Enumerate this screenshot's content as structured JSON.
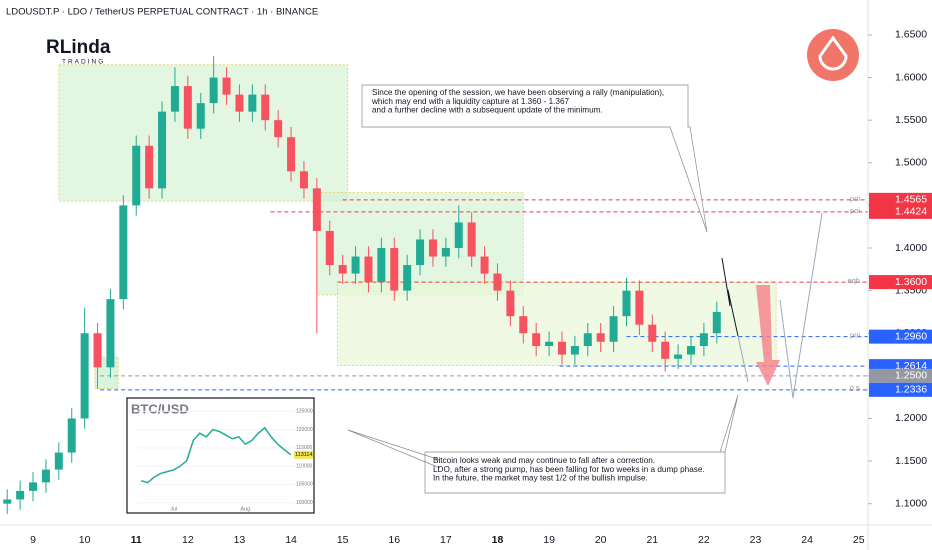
{
  "chart_data": [
    {
      "type": "candlestick",
      "title": "LDOUSDT.P · LDO / TetherUS PERPETUAL CONTRACT · 1h · BINANCE",
      "logo": [
        "RLinda",
        "TRADING"
      ],
      "up_color": "#22ab94",
      "down_color": "#f7525f",
      "xlim": [
        8.36,
        25.18
      ],
      "ylim": [
        1.075,
        1.691
      ],
      "xticks": [
        9,
        10,
        11,
        12,
        13,
        14,
        15,
        16,
        17,
        18,
        19,
        20,
        21,
        22,
        23,
        24,
        25
      ],
      "bold_xticks": [
        11,
        18
      ],
      "yticks": [
        {
          "value": 1.1,
          "label": "1.1000"
        },
        {
          "value": 1.15,
          "label": "1.1500"
        },
        {
          "value": 1.2,
          "label": "1.2000"
        },
        {
          "value": 1.25,
          "label": "1.2500"
        },
        {
          "value": 1.3,
          "label": "1.3000"
        },
        {
          "value": 1.35,
          "label": "1.3500"
        },
        {
          "value": 1.4,
          "label": "1.4000"
        },
        {
          "value": 1.45,
          "label": "1.4500"
        },
        {
          "value": 1.5,
          "label": "1.5000"
        },
        {
          "value": 1.55,
          "label": "1.5500"
        },
        {
          "value": 1.6,
          "label": "1.6000"
        },
        {
          "value": 1.65,
          "label": "1.6500"
        }
      ],
      "candles": {
        "x": [
          8.5,
          8.75,
          9,
          9.25,
          9.5,
          9.75,
          10,
          10.25,
          10.5,
          10.75,
          11,
          11.25,
          11.5,
          11.75,
          12,
          12.25,
          12.5,
          12.75,
          13,
          13.25,
          13.5,
          13.75,
          14,
          14.25,
          14.5,
          14.75,
          15,
          15.25,
          15.5,
          15.75,
          16,
          16.25,
          16.5,
          16.75,
          17,
          17.25,
          17.5,
          17.75,
          18,
          18.25,
          18.5,
          18.75,
          19,
          19.25,
          19.5,
          19.75,
          20,
          20.25,
          20.5,
          20.75,
          21,
          21.25,
          21.5,
          21.75,
          22,
          22.25
        ],
        "open": [
          1.1,
          1.105,
          1.115,
          1.125,
          1.14,
          1.16,
          1.2,
          1.3,
          1.26,
          1.34,
          1.45,
          1.52,
          1.47,
          1.56,
          1.59,
          1.54,
          1.57,
          1.6,
          1.58,
          1.56,
          1.58,
          1.55,
          1.53,
          1.49,
          1.47,
          1.42,
          1.38,
          1.37,
          1.39,
          1.36,
          1.4,
          1.35,
          1.38,
          1.41,
          1.39,
          1.4,
          1.43,
          1.39,
          1.37,
          1.35,
          1.32,
          1.3,
          1.285,
          1.29,
          1.275,
          1.285,
          1.3,
          1.29,
          1.32,
          1.35,
          1.31,
          1.29,
          1.27,
          1.275,
          1.285,
          1.3
        ],
        "high": [
          1.117,
          1.127,
          1.137,
          1.152,
          1.172,
          1.212,
          1.33,
          1.312,
          1.352,
          1.462,
          1.532,
          1.532,
          1.572,
          1.612,
          1.602,
          1.582,
          1.625,
          1.612,
          1.592,
          1.592,
          1.592,
          1.562,
          1.542,
          1.502,
          1.482,
          1.432,
          1.392,
          1.402,
          1.402,
          1.412,
          1.412,
          1.392,
          1.422,
          1.422,
          1.412,
          1.45,
          1.442,
          1.402,
          1.382,
          1.362,
          1.332,
          1.312,
          1.302,
          1.302,
          1.297,
          1.312,
          1.312,
          1.332,
          1.365,
          1.362,
          1.322,
          1.302,
          1.287,
          1.297,
          1.312,
          1.337
        ],
        "low": [
          1.088,
          1.093,
          1.103,
          1.113,
          1.128,
          1.148,
          1.188,
          1.235,
          1.248,
          1.328,
          1.438,
          1.458,
          1.458,
          1.548,
          1.528,
          1.528,
          1.558,
          1.568,
          1.548,
          1.548,
          1.538,
          1.518,
          1.478,
          1.458,
          1.3,
          1.368,
          1.358,
          1.358,
          1.348,
          1.348,
          1.338,
          1.338,
          1.368,
          1.378,
          1.378,
          1.388,
          1.378,
          1.358,
          1.338,
          1.308,
          1.288,
          1.273,
          1.273,
          1.263,
          1.263,
          1.273,
          1.278,
          1.278,
          1.308,
          1.298,
          1.278,
          1.255,
          1.258,
          1.263,
          1.273,
          1.288
        ],
        "close": [
          1.105,
          1.115,
          1.125,
          1.14,
          1.16,
          1.2,
          1.3,
          1.26,
          1.34,
          1.45,
          1.52,
          1.47,
          1.56,
          1.59,
          1.54,
          1.57,
          1.6,
          1.58,
          1.56,
          1.58,
          1.55,
          1.53,
          1.49,
          1.47,
          1.42,
          1.38,
          1.37,
          1.39,
          1.36,
          1.4,
          1.35,
          1.38,
          1.41,
          1.39,
          1.4,
          1.43,
          1.39,
          1.37,
          1.35,
          1.32,
          1.3,
          1.285,
          1.29,
          1.275,
          1.285,
          1.3,
          1.29,
          1.32,
          1.35,
          1.31,
          1.29,
          1.27,
          1.275,
          1.285,
          1.3,
          1.325
        ]
      },
      "zones": [
        {
          "x": [
            9.5,
            15.1
          ],
          "y": [
            1.455,
            1.615
          ],
          "color": "#d6f2d6"
        },
        {
          "x": [
            14.5,
            18.5
          ],
          "y": [
            1.345,
            1.465
          ],
          "color": "#d6f2d6"
        },
        {
          "x": [
            14.9,
            23.4
          ],
          "y": [
            1.262,
            1.36
          ],
          "color": "#e8f6d8"
        },
        {
          "x": [
            10.2,
            10.65
          ],
          "y": [
            1.235,
            1.272
          ],
          "color": "#c9efcf"
        }
      ],
      "levels": [
        {
          "price": {
            "value": 1.4565,
            "label": "1.4565"
          },
          "from": 15.0,
          "tag": "poi",
          "color": "#f23645"
        },
        {
          "price": {
            "value": 1.4424,
            "label": "1.4424"
          },
          "from": 13.6,
          "tag": "poi",
          "color": "#f23645"
        },
        {
          "price": {
            "value": 1.36,
            "label": "1.3600"
          },
          "from": 14.9,
          "tag": "eqh",
          "color": "#f23645"
        },
        {
          "price": {
            "value": 1.296,
            "label": "1.2960"
          },
          "from": 20.5,
          "tag": "poi",
          "color": "#2962ff"
        },
        {
          "price": {
            "value": 1.2614,
            "label": "1.2614"
          },
          "from": 19.2,
          "tag": null,
          "color": "#2962ff"
        },
        {
          "price": {
            "value": 1.25,
            "label": "1.2500"
          },
          "from": 10.3,
          "tag": null,
          "color": "#9598a1"
        },
        {
          "price": {
            "value": 1.2336,
            "label": "1.2336"
          },
          "from": 10.3,
          "tag": "0.5",
          "color": "#2962ff"
        }
      ],
      "annotations": [
        [
          "Since the opening of the session, we have been observing a rally (manipulation),",
          "which may end with a liquidity capture at 1.360 - 1.367",
          "and a further decline with a subsequent update of the minimum."
        ],
        [
          "Bitcoin looks weak and may continue to fall after a correction.",
          "LDO, after a strong pump, has been falling for two weeks in a dump phase.",
          "In the future, the market may test 1/2 of the bullish impulse."
        ]
      ]
    },
    {
      "type": "line",
      "title": "BTC/USD",
      "color": "#22ab94",
      "categories": [
        null,
        null,
        null,
        null,
        null,
        "Jul",
        null,
        null,
        null,
        null,
        null,
        null,
        null,
        null,
        null,
        null,
        "Aug",
        null,
        null,
        null,
        null,
        null,
        null,
        null
      ],
      "values": [
        106000,
        105500,
        107000,
        108000,
        108500,
        109000,
        110000,
        111500,
        117000,
        119000,
        118000,
        120000,
        119500,
        118500,
        117500,
        118000,
        116000,
        117000,
        119000,
        120500,
        118000,
        116000,
        114500,
        113114
      ],
      "ylim": [
        98000,
        127000
      ],
      "yticks": [
        100000,
        105000,
        110000,
        115000,
        120000,
        125000
      ]
    }
  ]
}
